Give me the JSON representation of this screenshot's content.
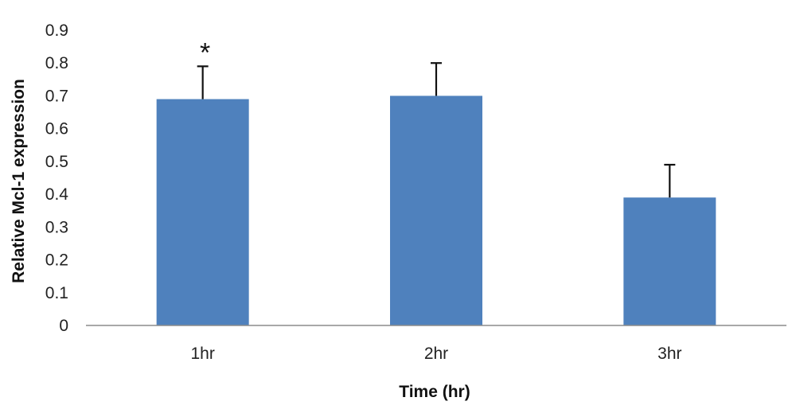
{
  "chart_data": {
    "type": "bar",
    "categories": [
      "1hr",
      "2hr",
      "3hr"
    ],
    "values": [
      0.69,
      0.7,
      0.39
    ],
    "error_up": [
      0.1,
      0.1,
      0.1
    ],
    "annotations": [
      "*",
      "",
      ""
    ],
    "title": "",
    "xlabel": "Time (hr)",
    "ylabel": "Relative Mcl-1 expression",
    "ylim": [
      0,
      0.9
    ],
    "yticks": [
      "0",
      "0.1",
      "0.2",
      "0.3",
      "0.4",
      "0.5",
      "0.6",
      "0.7",
      "0.8",
      "0.9"
    ],
    "bar_color": "#4f81bd",
    "grid": false,
    "legend": "none"
  }
}
